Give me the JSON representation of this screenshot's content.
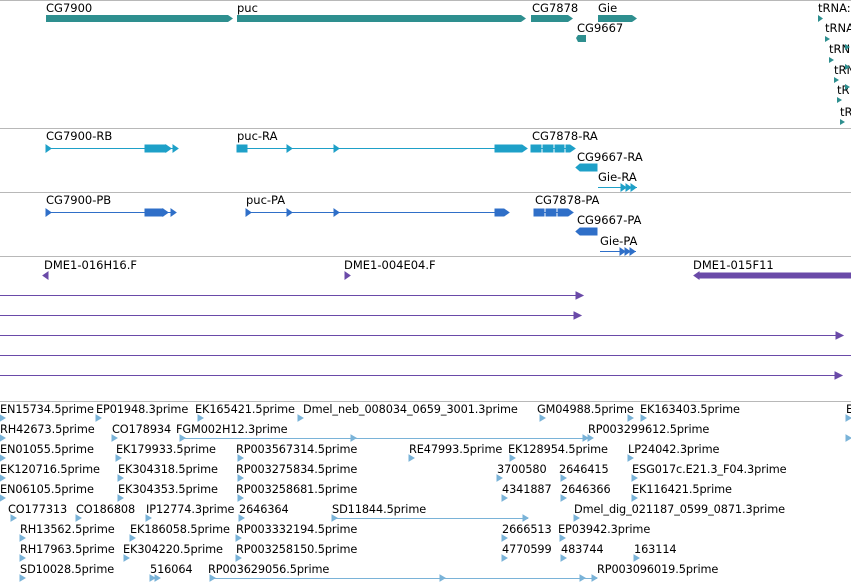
{
  "colors": {
    "gene": "#2e8f8f",
    "transcript": "#1ea0c8",
    "protein": "#2f6fc8",
    "clone": "#6a4aa8",
    "est": "#7ab3d8",
    "separator": "#b8b8b8"
  },
  "genes": {
    "cg7900": "CG7900",
    "puc": "puc",
    "cg7878": "CG7878",
    "gie": "Gie",
    "cg9667": "CG9667",
    "trna_1": "tRNA:",
    "trna_2": "tRNA",
    "trna_3": "tRN",
    "trna_4": "tRN",
    "trna_5": "tR",
    "trna_6": "tR",
    "trna_7": "tF"
  },
  "transcripts": {
    "cg7900_rb": "CG7900-RB",
    "puc_ra": "puc-RA",
    "cg7878_ra": "CG7878-RA",
    "cg9667_ra": "CG9667-RA",
    "gie_ra": "Gie-RA"
  },
  "proteins": {
    "cg7900_pb": "CG7900-PB",
    "puc_pa": "puc-PA",
    "cg7878_pa": "CG7878-PA",
    "cg9667_pa": "CG9667-PA",
    "gie_pa": "Gie-PA"
  },
  "clones": {
    "c1": "DME1-016H16.F",
    "c2": "DME1-004E04.F",
    "c3": "DME1-015F11"
  },
  "ests": {
    "r1": [
      "EN15734.5prime",
      "EP01948.3prime",
      "EK165421.5prime",
      "Dmel_neb_008034_0659_3001.3prime",
      "GM04988.5prime",
      "EK163403.5prime",
      "E"
    ],
    "r2": [
      "RH42673.5prime",
      "CO178934",
      "FGM002H12.3prime",
      "RP003299612.5prime"
    ],
    "r3": [
      "EN01055.5prime",
      "EK179933.5prime",
      "RP003567314.5prime",
      "RE47993.5prime",
      "EK128954.5prime",
      "LP24042.3prime"
    ],
    "r4": [
      "EK120716.5prime",
      "EK304318.5prime",
      "RP003275834.5prime",
      "3700580",
      "2646415",
      "ESG017c.E21.3_F04.3prime"
    ],
    "r5": [
      "EN06105.5prime",
      "EK304353.5prime",
      "RP003258681.5prime",
      "4341887",
      "2646366",
      "EK116421.5prime"
    ],
    "r6": [
      "CO177313",
      "CO186808",
      "IP12774.3prime",
      "2646364",
      "SD11844.5prime",
      "Dmel_dig_021187_0599_0871.3prime"
    ],
    "r7": [
      "RH13562.5prime",
      "EK186058.5prime",
      "RP003332194.5prime",
      "2666513",
      "EP03942.3prime"
    ],
    "r8": [
      "RH17963.5prime",
      "EK304220.5prime",
      "RP003258150.5prime",
      "4770599",
      "483744",
      "163114"
    ],
    "r9": [
      "SD10028.5prime",
      "516064",
      "RP003629056.5prime",
      "RP003096019.5prime"
    ]
  }
}
